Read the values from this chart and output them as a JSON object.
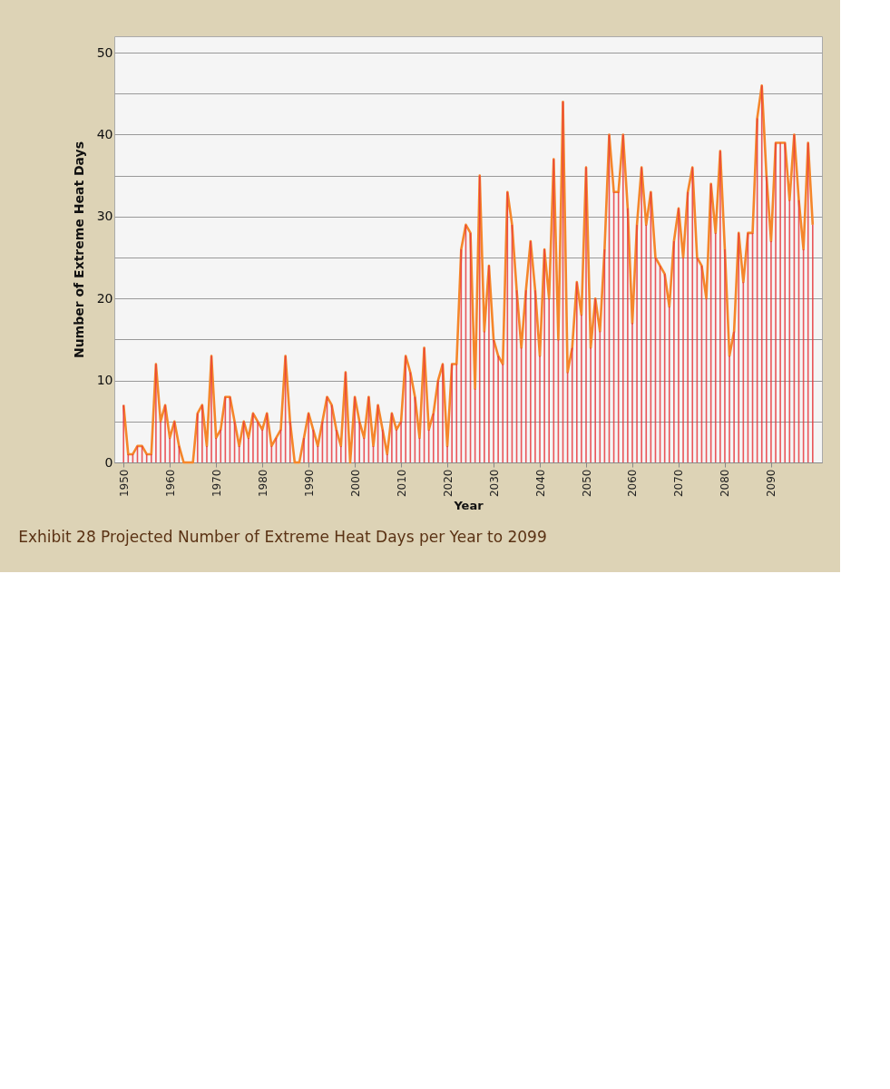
{
  "chart_data": {
    "type": "bar",
    "xlabel": "Year",
    "ylabel": "Number of Extreme Heat Days",
    "x": [
      1950,
      1951,
      1952,
      1953,
      1954,
      1955,
      1956,
      1957,
      1958,
      1959,
      1960,
      1961,
      1962,
      1963,
      1964,
      1965,
      1966,
      1967,
      1968,
      1969,
      1970,
      1971,
      1972,
      1973,
      1974,
      1975,
      1976,
      1977,
      1978,
      1979,
      1980,
      1981,
      1982,
      1983,
      1984,
      1985,
      1986,
      1987,
      1988,
      1989,
      1990,
      1991,
      1992,
      1993,
      1994,
      1995,
      1996,
      1997,
      1998,
      1999,
      2000,
      2001,
      2002,
      2003,
      2004,
      2005,
      2006,
      2007,
      2008,
      2009,
      2010,
      2011,
      2012,
      2013,
      2014,
      2015,
      2016,
      2017,
      2018,
      2019,
      2020,
      2021,
      2022,
      2023,
      2024,
      2025,
      2026,
      2027,
      2028,
      2029,
      2030,
      2031,
      2032,
      2033,
      2034,
      2035,
      2036,
      2037,
      2038,
      2039,
      2040,
      2041,
      2042,
      2043,
      2044,
      2045,
      2046,
      2047,
      2048,
      2049,
      2050,
      2051,
      2052,
      2053,
      2054,
      2055,
      2056,
      2057,
      2058,
      2059,
      2060,
      2061,
      2062,
      2063,
      2064,
      2065,
      2066,
      2067,
      2068,
      2069,
      2070,
      2071,
      2072,
      2073,
      2074,
      2075,
      2076,
      2077,
      2078,
      2079,
      2080,
      2081,
      2082,
      2083,
      2084,
      2085,
      2086,
      2087,
      2088,
      2089,
      2090,
      2091,
      2092,
      2093,
      2094,
      2095,
      2096,
      2097,
      2098,
      2099
    ],
    "series": [
      {
        "color": "#e8383d",
        "values": [
          7,
          1,
          1,
          2,
          2,
          1,
          1,
          12,
          5,
          7,
          3,
          5,
          2,
          0,
          0,
          0,
          6,
          7,
          2,
          13,
          3,
          4,
          8,
          8,
          5,
          2,
          5,
          3,
          6,
          5,
          4,
          6,
          2,
          3,
          4,
          13,
          5,
          0,
          0,
          3,
          6,
          4,
          2,
          5,
          8,
          7,
          4,
          2,
          11,
          0,
          8,
          5,
          3,
          8,
          2,
          7,
          4,
          1,
          6,
          4,
          5,
          13,
          11,
          8,
          3,
          14,
          4,
          6,
          10,
          12,
          2,
          12,
          12,
          26,
          29,
          28,
          9,
          35,
          16,
          24,
          15,
          13,
          12,
          33,
          29,
          21,
          14,
          21,
          27,
          21,
          13,
          26,
          20,
          37,
          15,
          44,
          11,
          14,
          22,
          18,
          36,
          14,
          20,
          16,
          26,
          40,
          33,
          33,
          40,
          31,
          17,
          29,
          36,
          29,
          33,
          25,
          24,
          23,
          19,
          27,
          31,
          25,
          33,
          36,
          25,
          24,
          20,
          34,
          28,
          38,
          26,
          13,
          16,
          28,
          22,
          28,
          28,
          42,
          46,
          35,
          27,
          39,
          39,
          39,
          32,
          40,
          32,
          26,
          39,
          29
        ]
      },
      {
        "type": "line",
        "color": "#f5862a",
        "values": [
          7,
          1,
          1,
          2,
          2,
          1,
          1,
          12,
          5,
          7,
          3,
          5,
          2,
          0,
          0,
          0,
          6,
          7,
          2,
          13,
          3,
          4,
          8,
          8,
          5,
          2,
          5,
          3,
          6,
          5,
          4,
          6,
          2,
          3,
          4,
          13,
          5,
          0,
          0,
          3,
          6,
          4,
          2,
          5,
          8,
          7,
          4,
          2,
          11,
          0,
          8,
          5,
          3,
          8,
          2,
          7,
          4,
          1,
          6,
          4,
          5,
          13,
          11,
          8,
          3,
          14,
          4,
          6,
          10,
          12,
          2,
          12,
          12,
          26,
          29,
          28,
          9,
          35,
          16,
          24,
          15,
          13,
          12,
          33,
          29,
          21,
          14,
          21,
          27,
          21,
          13,
          26,
          20,
          37,
          15,
          44,
          11,
          14,
          22,
          18,
          36,
          14,
          20,
          16,
          26,
          40,
          33,
          33,
          40,
          31,
          17,
          29,
          36,
          29,
          33,
          25,
          24,
          23,
          19,
          27,
          31,
          25,
          33,
          36,
          25,
          24,
          20,
          34,
          28,
          38,
          26,
          13,
          16,
          28,
          22,
          28,
          28,
          42,
          46,
          35,
          27,
          39,
          39,
          39,
          32,
          40,
          32,
          26,
          39,
          29
        ]
      }
    ],
    "xlim": [
      1948,
      2101
    ],
    "xticks": [
      1950,
      1960,
      1970,
      1980,
      1990,
      2000,
      2010,
      2020,
      2030,
      2040,
      2050,
      2060,
      2070,
      2080,
      2090
    ],
    "ylim": [
      0,
      52
    ],
    "yticks": [
      0,
      {
        "value": 5,
        "label": null
      },
      10,
      {
        "value": 15,
        "label": null
      },
      20,
      {
        "value": 25,
        "label": null
      },
      30,
      {
        "value": 35,
        "label": null
      },
      40,
      {
        "value": 45,
        "label": null
      },
      50
    ],
    "grid": "y",
    "annotations": [
      "Exhibit 28 Projected Number of Extreme Heat Days per Year to 2099"
    ]
  }
}
